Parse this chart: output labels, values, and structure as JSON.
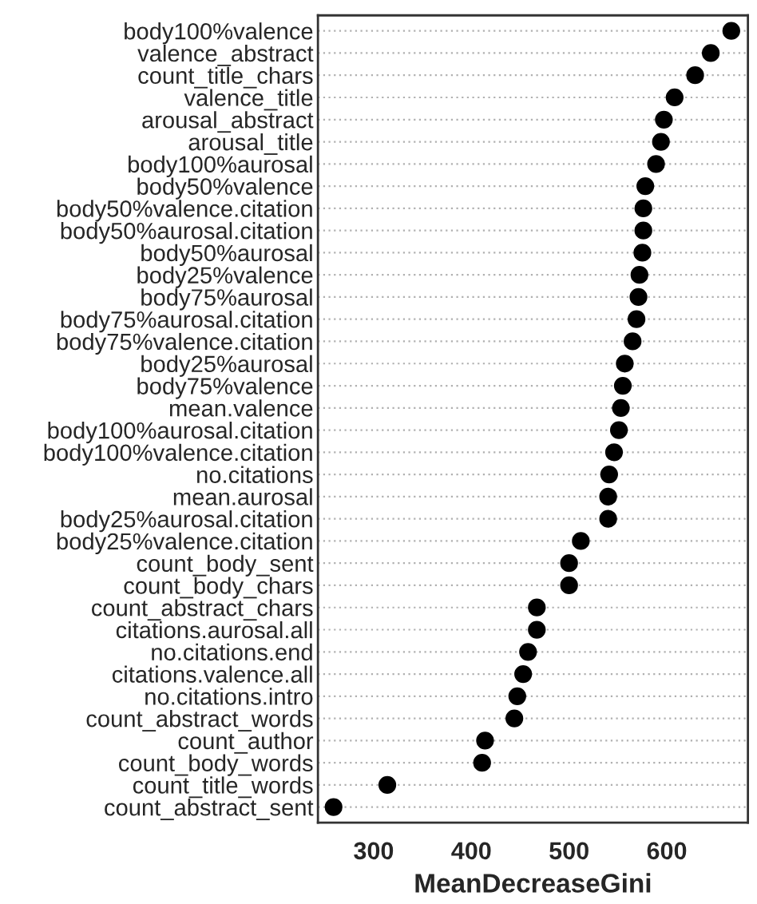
{
  "chart_data": {
    "type": "scatter",
    "orientation": "horizontal",
    "xlabel": "MeanDecreaseGini",
    "categories": [
      "body100%valence",
      "valence_abstract",
      "count_title_chars",
      "valence_title",
      "arousal_abstract",
      "arousal_title",
      "body100%aurosal",
      "body50%valence",
      "body50%valence.citation",
      "body50%aurosal.citation",
      "body50%aurosal",
      "body25%valence",
      "body75%aurosal",
      "body75%aurosal.citation",
      "body75%valence.citation",
      "body25%aurosal",
      "body75%valence",
      "mean.valence",
      "body100%aurosal.citation",
      "body100%valence.citation",
      "no.citations",
      "mean.aurosal",
      "body25%aurosal.citation",
      "body25%valence.citation",
      "count_body_sent",
      "count_body_chars",
      "count_abstract_chars",
      "citations.aurosal.all",
      "no.citations.end",
      "citations.valence.all",
      "no.citations.intro",
      "count_abstract_words",
      "count_author",
      "count_body_words",
      "count_title_words",
      "count_abstract_sent"
    ],
    "values": [
      666,
      645,
      629,
      608,
      597,
      594,
      589,
      578,
      576,
      576,
      575,
      572,
      571,
      569,
      565,
      557,
      555,
      553,
      551,
      546,
      541,
      540,
      540,
      512,
      500,
      500,
      467,
      467,
      458,
      453,
      447,
      444,
      414,
      411,
      314,
      259
    ],
    "color": "#000000",
    "marker": "circle",
    "grid": "y",
    "xlim": [
      243,
      683
    ],
    "xticks": [
      300,
      400,
      500,
      600
    ]
  }
}
